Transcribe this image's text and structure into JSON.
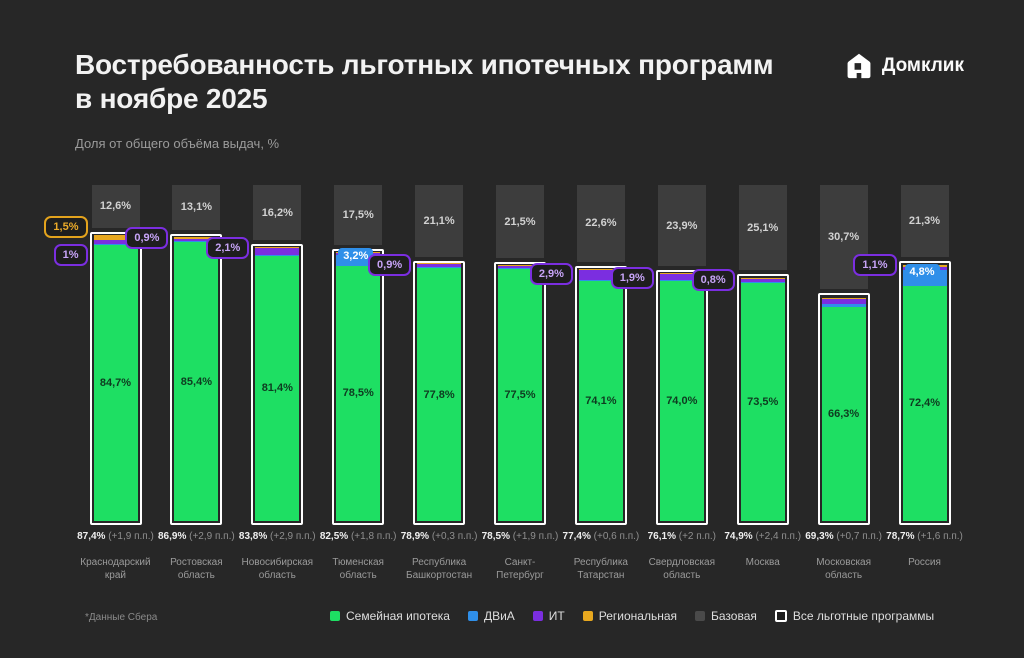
{
  "header": {
    "title": "Востребованность льготных ипотечных программ в ноябре 2025",
    "subtitle": "Доля от общего объёма выдач, %",
    "brand": "Домклик"
  },
  "footnote": "*Данные Сбера",
  "colors": {
    "background": "#272727",
    "family": "#1edf63",
    "dvia": "#2f8fe9",
    "it": "#7b2ee0",
    "regional": "#e8a81f",
    "base": "#3d3d3d",
    "outline": "#ffffff",
    "title_text": "#f2f2f2",
    "muted_text": "#9b9b9b"
  },
  "legend": {
    "items": [
      {
        "label": "Семейная ипотека",
        "swatch": "#1edf63",
        "type": "fill"
      },
      {
        "label": "ДВиА",
        "swatch": "#2f8fe9",
        "type": "fill"
      },
      {
        "label": "ИТ",
        "swatch": "#7b2ee0",
        "type": "fill"
      },
      {
        "label": "Региональная",
        "swatch": "#e8a81f",
        "type": "fill"
      },
      {
        "label": "Базовая",
        "swatch": "#4a4a4a",
        "type": "fill"
      },
      {
        "label": "Все льготные программы",
        "swatch": "#ffffff",
        "type": "outline"
      }
    ]
  },
  "chart_data": {
    "type": "bar",
    "stacked": true,
    "percent_axis": true,
    "unit": "%",
    "ylim": [
      0,
      100
    ],
    "grid": false,
    "legend_position": "bottom",
    "categories": [
      "Краснодарский край",
      "Ростовская область",
      "Новосибирская область",
      "Тюменская область",
      "Республика Башкортостан",
      "Санкт-Петербург",
      "Республика Татарстан",
      "Свердловская область",
      "Москва",
      "Московская область",
      "Россия"
    ],
    "series": [
      {
        "name": "Семейная ипотека",
        "color": "#1edf63",
        "values": [
          84.7,
          85.4,
          81.4,
          78.5,
          77.8,
          77.5,
          74.1,
          74.0,
          73.5,
          66.3,
          72.4
        ]
      },
      {
        "name": "ДВиА",
        "color": "#2f8fe9",
        "values": [
          0.2,
          0.2,
          0.2,
          3.2,
          0.1,
          0.3,
          0.2,
          0.1,
          0.3,
          1.0,
          4.8
        ]
      },
      {
        "name": "ИТ",
        "color": "#7b2ee0",
        "values": [
          1.0,
          0.9,
          2.1,
          0.6,
          0.9,
          0.6,
          2.9,
          1.9,
          0.8,
          1.5,
          1.1
        ]
      },
      {
        "name": "Региональная",
        "color": "#e8a81f",
        "values": [
          1.5,
          0.4,
          0.1,
          0.2,
          0.1,
          0.1,
          0.2,
          0.1,
          0.3,
          0.5,
          0.4
        ]
      },
      {
        "name": "Базовая",
        "color": "#3d3d3d",
        "values": [
          12.6,
          13.1,
          16.2,
          17.5,
          21.1,
          21.5,
          22.6,
          23.9,
          25.1,
          30.7,
          21.3
        ]
      }
    ],
    "family_labels": [
      "84,7%",
      "85,4%",
      "81,4%",
      "78,5%",
      "77,8%",
      "77,5%",
      "74,1%",
      "74,0%",
      "73,5%",
      "66,3%",
      "72,4%"
    ],
    "base_labels": [
      "12,6%",
      "13,1%",
      "16,2%",
      "17,5%",
      "21,1%",
      "21,5%",
      "22,6%",
      "23,9%",
      "25,1%",
      "30,7%",
      "21,3%"
    ],
    "totals": [
      "87,4%",
      "86,9%",
      "83,8%",
      "82,5%",
      "78,9%",
      "78,5%",
      "77,4%",
      "76,1%",
      "74,9%",
      "69,3%",
      "78,7%"
    ],
    "deltas": [
      "(+1,9 п.п.)",
      "(+2,9 п.п.)",
      "(+2,9 п.п.)",
      "(+1,8 п.п.)",
      "(+0,3 п.п.)",
      "(+1,9 п.п.)",
      "(+0,6 п.п.)",
      "(+2 п.п.)",
      "(+2,4 п.п.)",
      "(+0,7 п.п.)",
      "(+1,6 п.п.)"
    ],
    "callouts": [
      {
        "bar": 0,
        "text": "1,5%",
        "kind": "yellow",
        "dy": -1
      },
      {
        "bar": 0,
        "text": "1%",
        "kind": "purple",
        "dy": 27
      },
      {
        "bar": 1,
        "text": "0,9%",
        "kind": "purple",
        "dy": 8
      },
      {
        "bar": 2,
        "text": "2,1%",
        "kind": "purple",
        "dy": 8
      },
      {
        "bar": 4,
        "text": "0,9%",
        "kind": "purple",
        "dy": 8
      },
      {
        "bar": 6,
        "text": "2,9%",
        "kind": "purple",
        "dy": 12
      },
      {
        "bar": 7,
        "text": "1,9%",
        "kind": "purple",
        "dy": 12
      },
      {
        "bar": 8,
        "text": "0,8%",
        "kind": "purple",
        "dy": 10
      },
      {
        "bar": 10,
        "text": "1,1%",
        "kind": "purple",
        "dy": 8
      }
    ],
    "blue_badges": [
      {
        "bar": 3,
        "text": "3,2%"
      },
      {
        "bar": 10,
        "text": "4,8%"
      }
    ]
  }
}
